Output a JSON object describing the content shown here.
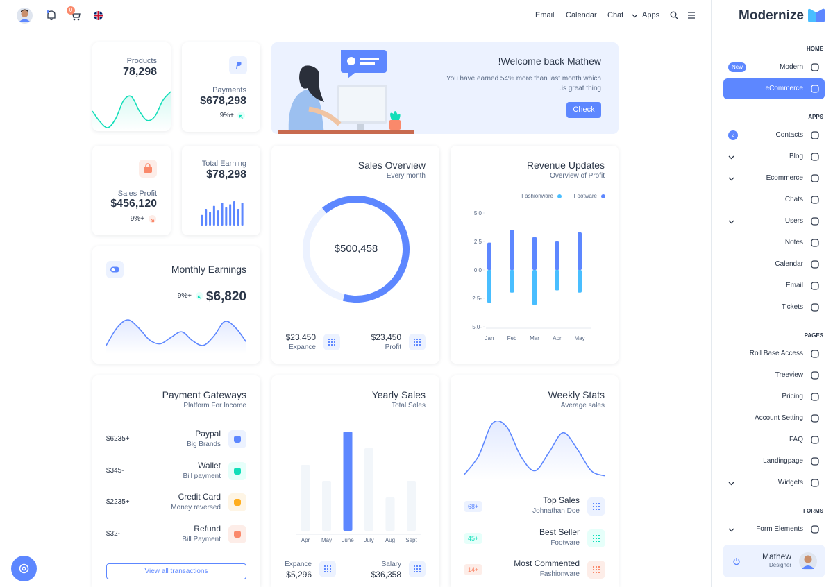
{
  "header": {
    "cart_badge": "0",
    "nav": [
      "Email",
      "Calendar",
      "Chat",
      "Apps"
    ]
  },
  "sidebar": {
    "brand": "Modernize",
    "sections": [
      {
        "title": "HOME",
        "items": [
          {
            "label": "Modern",
            "badge": "New"
          },
          {
            "label": "eCommerce",
            "active": true
          }
        ]
      },
      {
        "title": "APPS",
        "items": [
          {
            "label": "Contacts",
            "badge": "2"
          },
          {
            "label": "Blog",
            "expandable": true
          },
          {
            "label": "Ecommerce",
            "expandable": true
          },
          {
            "label": "Chats"
          },
          {
            "label": "Users",
            "expandable": true
          },
          {
            "label": "Notes"
          },
          {
            "label": "Calendar"
          },
          {
            "label": "Email"
          },
          {
            "label": "Tickets"
          }
        ]
      },
      {
        "title": "PAGES",
        "items": [
          {
            "label": "Roll Base Access"
          },
          {
            "label": "Treeview"
          },
          {
            "label": "Pricing"
          },
          {
            "label": "Account Setting"
          },
          {
            "label": "FAQ"
          },
          {
            "label": "Landingpage"
          },
          {
            "label": "Widgets",
            "expandable": true
          }
        ]
      },
      {
        "title": "FORMS",
        "items": [
          {
            "label": "Form Elements",
            "expandable": true
          }
        ]
      }
    ],
    "user": {
      "name": "Mathew",
      "role": "Designer"
    }
  },
  "cards": {
    "products": {
      "label": "Products",
      "value": "78,298",
      "chart": {
        "type": "area",
        "color": "#13deb9",
        "values": [
          25,
          10,
          2,
          15,
          40,
          45,
          25,
          12,
          18,
          40,
          52
        ]
      }
    },
    "payments": {
      "label": "Payments",
      "value": "$678,298",
      "change": "9%+"
    },
    "welcome": {
      "title": "!Welcome back Mathew",
      "lines": [
        "You have earned 54% more than last month which",
        ".is great thing"
      ],
      "button": "Check"
    },
    "sales_profit": {
      "label": "Sales Profit",
      "value": "$456,120",
      "change": "9%+"
    },
    "total_earning": {
      "label": "Total Earning",
      "value": "$78,298",
      "chart": {
        "type": "bar",
        "color": "#5d87ff",
        "values": [
          14,
          22,
          18,
          26,
          20,
          30,
          24,
          28,
          32,
          22,
          30
        ]
      }
    },
    "sales_overview": {
      "title": "Sales Overview",
      "subtitle": "Every month",
      "total": "$500,458",
      "chart": {
        "type": "donut",
        "values": [
          65,
          35
        ],
        "colors": [
          "#5d87ff",
          "#ecf2ff"
        ]
      },
      "stats": [
        {
          "value": "$23,450",
          "label": "Expance"
        },
        {
          "value": "$23,450",
          "label": "Profit"
        }
      ]
    },
    "revenue": {
      "title": "Revenue Updates",
      "subtitle": "Overview of Profit",
      "chart": {
        "type": "bar",
        "categories": [
          "Jan",
          "Feb",
          "Mar",
          "Apr",
          "May"
        ],
        "series": [
          {
            "name": "Fashionware",
            "color": "#49beff",
            "values": [
              -2.9,
              -2.0,
              -3.1,
              -1.8,
              -2.0
            ]
          },
          {
            "name": "Footware",
            "color": "#5d87ff",
            "values": [
              2.4,
              3.5,
              2.9,
              2.5,
              3.3
            ]
          }
        ],
        "ylim": [
          -5,
          5
        ],
        "yticks": [
          {
            "value": 5,
            "label": "5.0"
          },
          {
            "value": 2.5,
            "label": "2.5"
          },
          {
            "value": 0,
            "label": "0.0"
          },
          {
            "value": -2.5,
            "label": "2.5-"
          },
          {
            "value": -5,
            "label": "5.0-"
          }
        ]
      }
    },
    "monthly": {
      "title": "Monthly Earnings",
      "change": "9%+",
      "value": "$6,820",
      "chart": {
        "type": "area",
        "color": "#5d87ff",
        "values": [
          8,
          30,
          40,
          30,
          15,
          10,
          18,
          25,
          14,
          8,
          20,
          38,
          30,
          12
        ]
      }
    },
    "gateways": {
      "title": "Payment Gateways",
      "subtitle": "Platform For Income",
      "items": [
        {
          "name": "Paypal",
          "sub": "Big Brands",
          "amount": "$6235+"
        },
        {
          "name": "Wallet",
          "sub": "Bill payment",
          "amount": "$345-"
        },
        {
          "name": "Credit Card",
          "sub": "Money reversed",
          "amount": "$2235+"
        },
        {
          "name": "Refund",
          "sub": "Bill Payment",
          "amount": "$32-"
        }
      ],
      "button": "View all transactions"
    },
    "yearly": {
      "title": "Yearly Sales",
      "subtitle": "Total Sales",
      "chart": {
        "type": "bar",
        "categories": [
          "Apr",
          "May",
          "June",
          "July",
          "Aug",
          "Sept"
        ],
        "values": [
          95,
          72,
          143,
          119,
          48,
          72
        ],
        "colors": [
          "#f2f6fa",
          "#f2f6fa",
          "#5d87ff",
          "#f2f6fa",
          "#f2f6fa",
          "#f2f6fa"
        ]
      },
      "stats": [
        {
          "value": "$5,296",
          "label": "Expance"
        },
        {
          "value": "$36,358",
          "label": "Salary"
        }
      ]
    },
    "weekly": {
      "title": "Weekly Stats",
      "subtitle": "Average sales",
      "chart": {
        "type": "area",
        "color": "#5d87ff",
        "values": [
          5,
          30,
          75,
          70,
          30,
          10,
          35,
          62,
          40,
          10,
          3
        ]
      },
      "items": [
        {
          "title": "Top Sales",
          "sub": "Johnathan Doe",
          "badge": "68+"
        },
        {
          "title": "Best Seller",
          "sub": "Footware",
          "badge": "45+"
        },
        {
          "title": "Most Commented",
          "sub": "Fashionware",
          "badge": "14+"
        }
      ]
    }
  }
}
